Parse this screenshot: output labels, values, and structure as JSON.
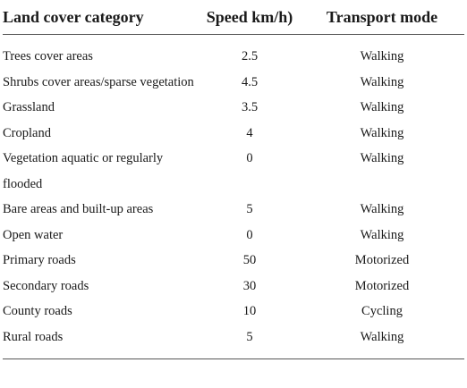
{
  "table": {
    "headers": {
      "category": "Land cover category",
      "speed": "Speed km/h)",
      "mode": "Transport mode"
    },
    "rows": [
      {
        "category": "Trees cover areas",
        "speed": "2.5",
        "mode": "Walking"
      },
      {
        "category": "Shrubs cover areas/sparse vegetation",
        "speed": "4.5",
        "mode": "Walking"
      },
      {
        "category": "Grassland",
        "speed": "3.5",
        "mode": "Walking"
      },
      {
        "category": "Cropland",
        "speed": "4",
        "mode": "Walking"
      },
      {
        "category": "Vegetation aquatic or regularly flooded",
        "speed": "0",
        "mode": "Walking"
      },
      {
        "category": "Bare areas and built-up areas",
        "speed": "5",
        "mode": "Walking"
      },
      {
        "category": "Open water",
        "speed": "0",
        "mode": "Walking"
      },
      {
        "category": "Primary roads",
        "speed": "50",
        "mode": "Motorized"
      },
      {
        "category": "Secondary roads",
        "speed": "30",
        "mode": "Motorized"
      },
      {
        "category": "County roads",
        "speed": "10",
        "mode": "Cycling"
      },
      {
        "category": "Rural roads",
        "speed": "5",
        "mode": "Walking"
      }
    ]
  }
}
